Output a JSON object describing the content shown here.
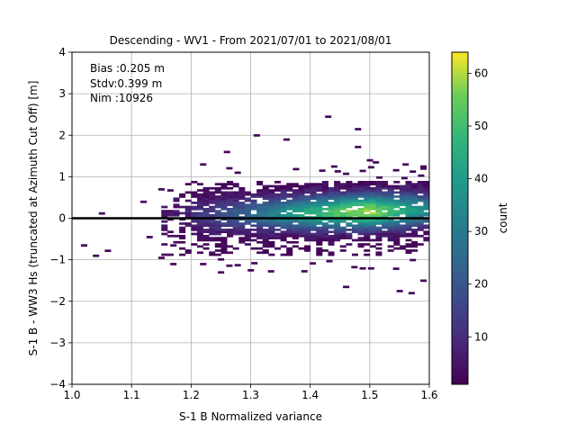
{
  "chart_data": {
    "type": "heatmap",
    "title": "Descending - WV1 - From 2021/07/01 to 2021/08/01",
    "xlabel": "S-1 B Normalized variance",
    "ylabel": "S-1 B - WW3 Hs (truncated at Azimuth Cut Off) [m]",
    "xlim": [
      1.0,
      1.6
    ],
    "ylim": [
      -4,
      4
    ],
    "x_ticks": [
      "1.0",
      "1.1",
      "1.2",
      "1.3",
      "1.4",
      "1.5",
      "1.6"
    ],
    "y_ticks": [
      "−4",
      "−3",
      "−2",
      "−1",
      "0",
      "1",
      "2",
      "3",
      "4"
    ],
    "grid": true,
    "reference_line_y": 0,
    "colorbar": {
      "label": "count",
      "range": [
        1,
        64
      ],
      "ticks": [
        "10",
        "20",
        "30",
        "40",
        "50",
        "60"
      ],
      "colormap": "viridis"
    },
    "annotations": [
      "Bias :0.205 m",
      "Stdv:0.399 m",
      "Nim :10926"
    ],
    "stats": {
      "bias_m": 0.205,
      "stdv_m": 0.399,
      "nim": 10926
    },
    "bin_size": {
      "x": 0.01,
      "y": 0.05
    },
    "cells": [
      [
        1.02,
        -0.65,
        2
      ],
      [
        1.04,
        -0.9,
        2
      ],
      [
        1.06,
        -0.78,
        2
      ],
      [
        1.05,
        0.12,
        2
      ],
      [
        1.12,
        0.4,
        2
      ],
      [
        1.15,
        0.7,
        2
      ],
      [
        1.13,
        -0.45,
        2
      ],
      [
        1.15,
        -0.95,
        2
      ],
      [
        1.17,
        -1.1,
        2
      ],
      [
        1.17,
        -0.65,
        2
      ],
      [
        1.22,
        1.3,
        2
      ],
      [
        1.26,
        1.6,
        2
      ],
      [
        1.31,
        2.0,
        2
      ],
      [
        1.36,
        1.9,
        2
      ],
      [
        1.22,
        -1.1,
        2
      ],
      [
        1.25,
        -1.3,
        2
      ],
      [
        1.3,
        -1.25,
        2
      ],
      [
        1.43,
        2.45,
        2
      ],
      [
        1.48,
        2.15,
        2
      ],
      [
        1.48,
        1.72,
        2
      ],
      [
        1.46,
        -1.65,
        2
      ],
      [
        1.55,
        -1.75,
        3
      ],
      [
        1.57,
        -1.8,
        2
      ],
      [
        1.59,
        -1.5,
        2
      ],
      [
        1.59,
        1.25,
        2
      ],
      [
        1.59,
        1.2,
        3
      ],
      [
        1.42,
        1.15,
        3
      ],
      [
        1.44,
        1.25,
        2
      ],
      [
        1.5,
        1.4,
        2
      ],
      [
        1.51,
        1.35,
        3
      ],
      [
        1.56,
        1.3,
        2
      ]
    ]
  }
}
